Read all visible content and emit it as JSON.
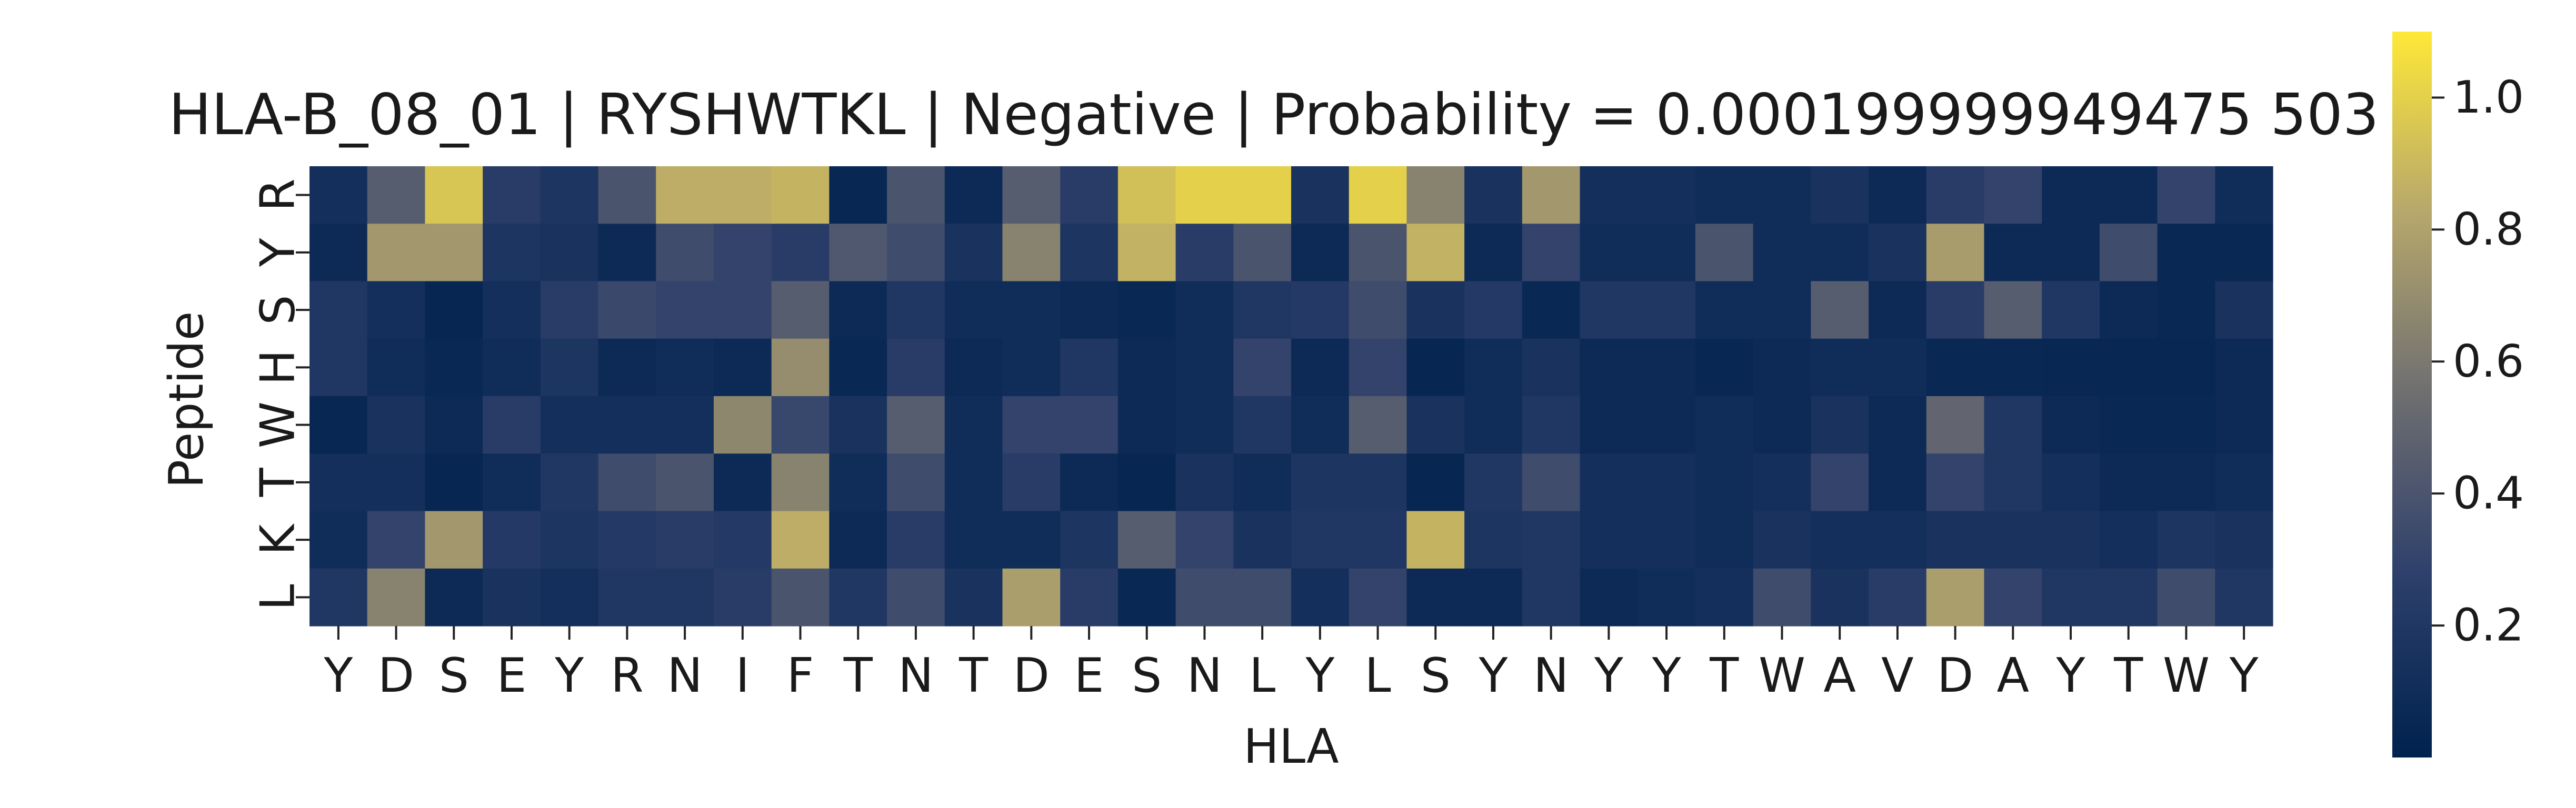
{
  "chart_data": {
    "type": "heatmap",
    "title": "HLA-B_08_01 | RYSHWTKL | Negative | Probability = 0.000199999949475  503",
    "xlabel": "HLA",
    "ylabel": "Peptide",
    "x_categories": [
      "Y",
      "D",
      "S",
      "E",
      "Y",
      "R",
      "N",
      "I",
      "F",
      "T",
      "N",
      "T",
      "D",
      "E",
      "S",
      "N",
      "L",
      "Y",
      "L",
      "S",
      "Y",
      "N",
      "Y",
      "Y",
      "T",
      "W",
      "A",
      "V",
      "D",
      "A",
      "Y",
      "T",
      "W",
      "Y"
    ],
    "y_categories": [
      "R",
      "Y",
      "S",
      "H",
      "W",
      "T",
      "K",
      "L"
    ],
    "values": [
      [
        0.12,
        0.45,
        0.95,
        0.25,
        0.18,
        0.4,
        0.85,
        0.85,
        0.88,
        0.05,
        0.4,
        0.08,
        0.45,
        0.25,
        0.93,
        1.0,
        1.0,
        0.15,
        1.0,
        0.65,
        0.15,
        0.75,
        0.12,
        0.12,
        0.1,
        0.1,
        0.15,
        0.08,
        0.25,
        0.3,
        0.08,
        0.08,
        0.3,
        0.1
      ],
      [
        0.08,
        0.75,
        0.75,
        0.18,
        0.15,
        0.08,
        0.35,
        0.3,
        0.25,
        0.42,
        0.35,
        0.15,
        0.65,
        0.18,
        0.87,
        0.25,
        0.4,
        0.08,
        0.4,
        0.87,
        0.08,
        0.3,
        0.1,
        0.1,
        0.4,
        0.1,
        0.1,
        0.15,
        0.77,
        0.08,
        0.08,
        0.35,
        0.06,
        0.06
      ],
      [
        0.2,
        0.12,
        0.04,
        0.12,
        0.25,
        0.33,
        0.3,
        0.3,
        0.45,
        0.08,
        0.2,
        0.1,
        0.1,
        0.08,
        0.06,
        0.1,
        0.2,
        0.22,
        0.35,
        0.15,
        0.22,
        0.06,
        0.2,
        0.2,
        0.1,
        0.1,
        0.45,
        0.08,
        0.25,
        0.45,
        0.2,
        0.08,
        0.06,
        0.15
      ],
      [
        0.2,
        0.1,
        0.06,
        0.1,
        0.18,
        0.08,
        0.1,
        0.08,
        0.7,
        0.06,
        0.25,
        0.08,
        0.1,
        0.2,
        0.08,
        0.1,
        0.3,
        0.08,
        0.3,
        0.04,
        0.1,
        0.15,
        0.08,
        0.08,
        0.05,
        0.08,
        0.1,
        0.1,
        0.06,
        0.06,
        0.05,
        0.05,
        0.05,
        0.08
      ],
      [
        0.05,
        0.15,
        0.08,
        0.25,
        0.12,
        0.12,
        0.12,
        0.67,
        0.32,
        0.15,
        0.45,
        0.1,
        0.3,
        0.3,
        0.08,
        0.1,
        0.2,
        0.1,
        0.45,
        0.15,
        0.1,
        0.2,
        0.08,
        0.08,
        0.1,
        0.08,
        0.15,
        0.08,
        0.5,
        0.2,
        0.08,
        0.06,
        0.06,
        0.08
      ],
      [
        0.12,
        0.12,
        0.04,
        0.1,
        0.2,
        0.35,
        0.4,
        0.08,
        0.65,
        0.1,
        0.35,
        0.1,
        0.25,
        0.08,
        0.04,
        0.15,
        0.1,
        0.18,
        0.18,
        0.04,
        0.2,
        0.35,
        0.12,
        0.12,
        0.1,
        0.12,
        0.3,
        0.08,
        0.3,
        0.2,
        0.12,
        0.08,
        0.08,
        0.1
      ],
      [
        0.1,
        0.3,
        0.75,
        0.22,
        0.18,
        0.22,
        0.25,
        0.22,
        0.85,
        0.08,
        0.25,
        0.1,
        0.1,
        0.18,
        0.45,
        0.3,
        0.15,
        0.2,
        0.2,
        0.88,
        0.18,
        0.2,
        0.12,
        0.12,
        0.1,
        0.15,
        0.12,
        0.12,
        0.15,
        0.15,
        0.15,
        0.12,
        0.18,
        0.15
      ],
      [
        0.2,
        0.65,
        0.08,
        0.15,
        0.12,
        0.2,
        0.2,
        0.25,
        0.4,
        0.2,
        0.35,
        0.15,
        0.78,
        0.25,
        0.06,
        0.35,
        0.35,
        0.12,
        0.3,
        0.08,
        0.08,
        0.2,
        0.08,
        0.1,
        0.12,
        0.35,
        0.15,
        0.25,
        0.78,
        0.3,
        0.2,
        0.2,
        0.35,
        0.2
      ]
    ],
    "colorbar": {
      "colormap": "cividis",
      "range": [
        0.0,
        1.1
      ],
      "ticks": [
        0.2,
        0.4,
        0.6,
        0.8,
        1.0
      ],
      "tick_labels": [
        "0.2",
        "0.4",
        "0.6",
        "0.8",
        "1.0"
      ]
    },
    "grid": false
  }
}
